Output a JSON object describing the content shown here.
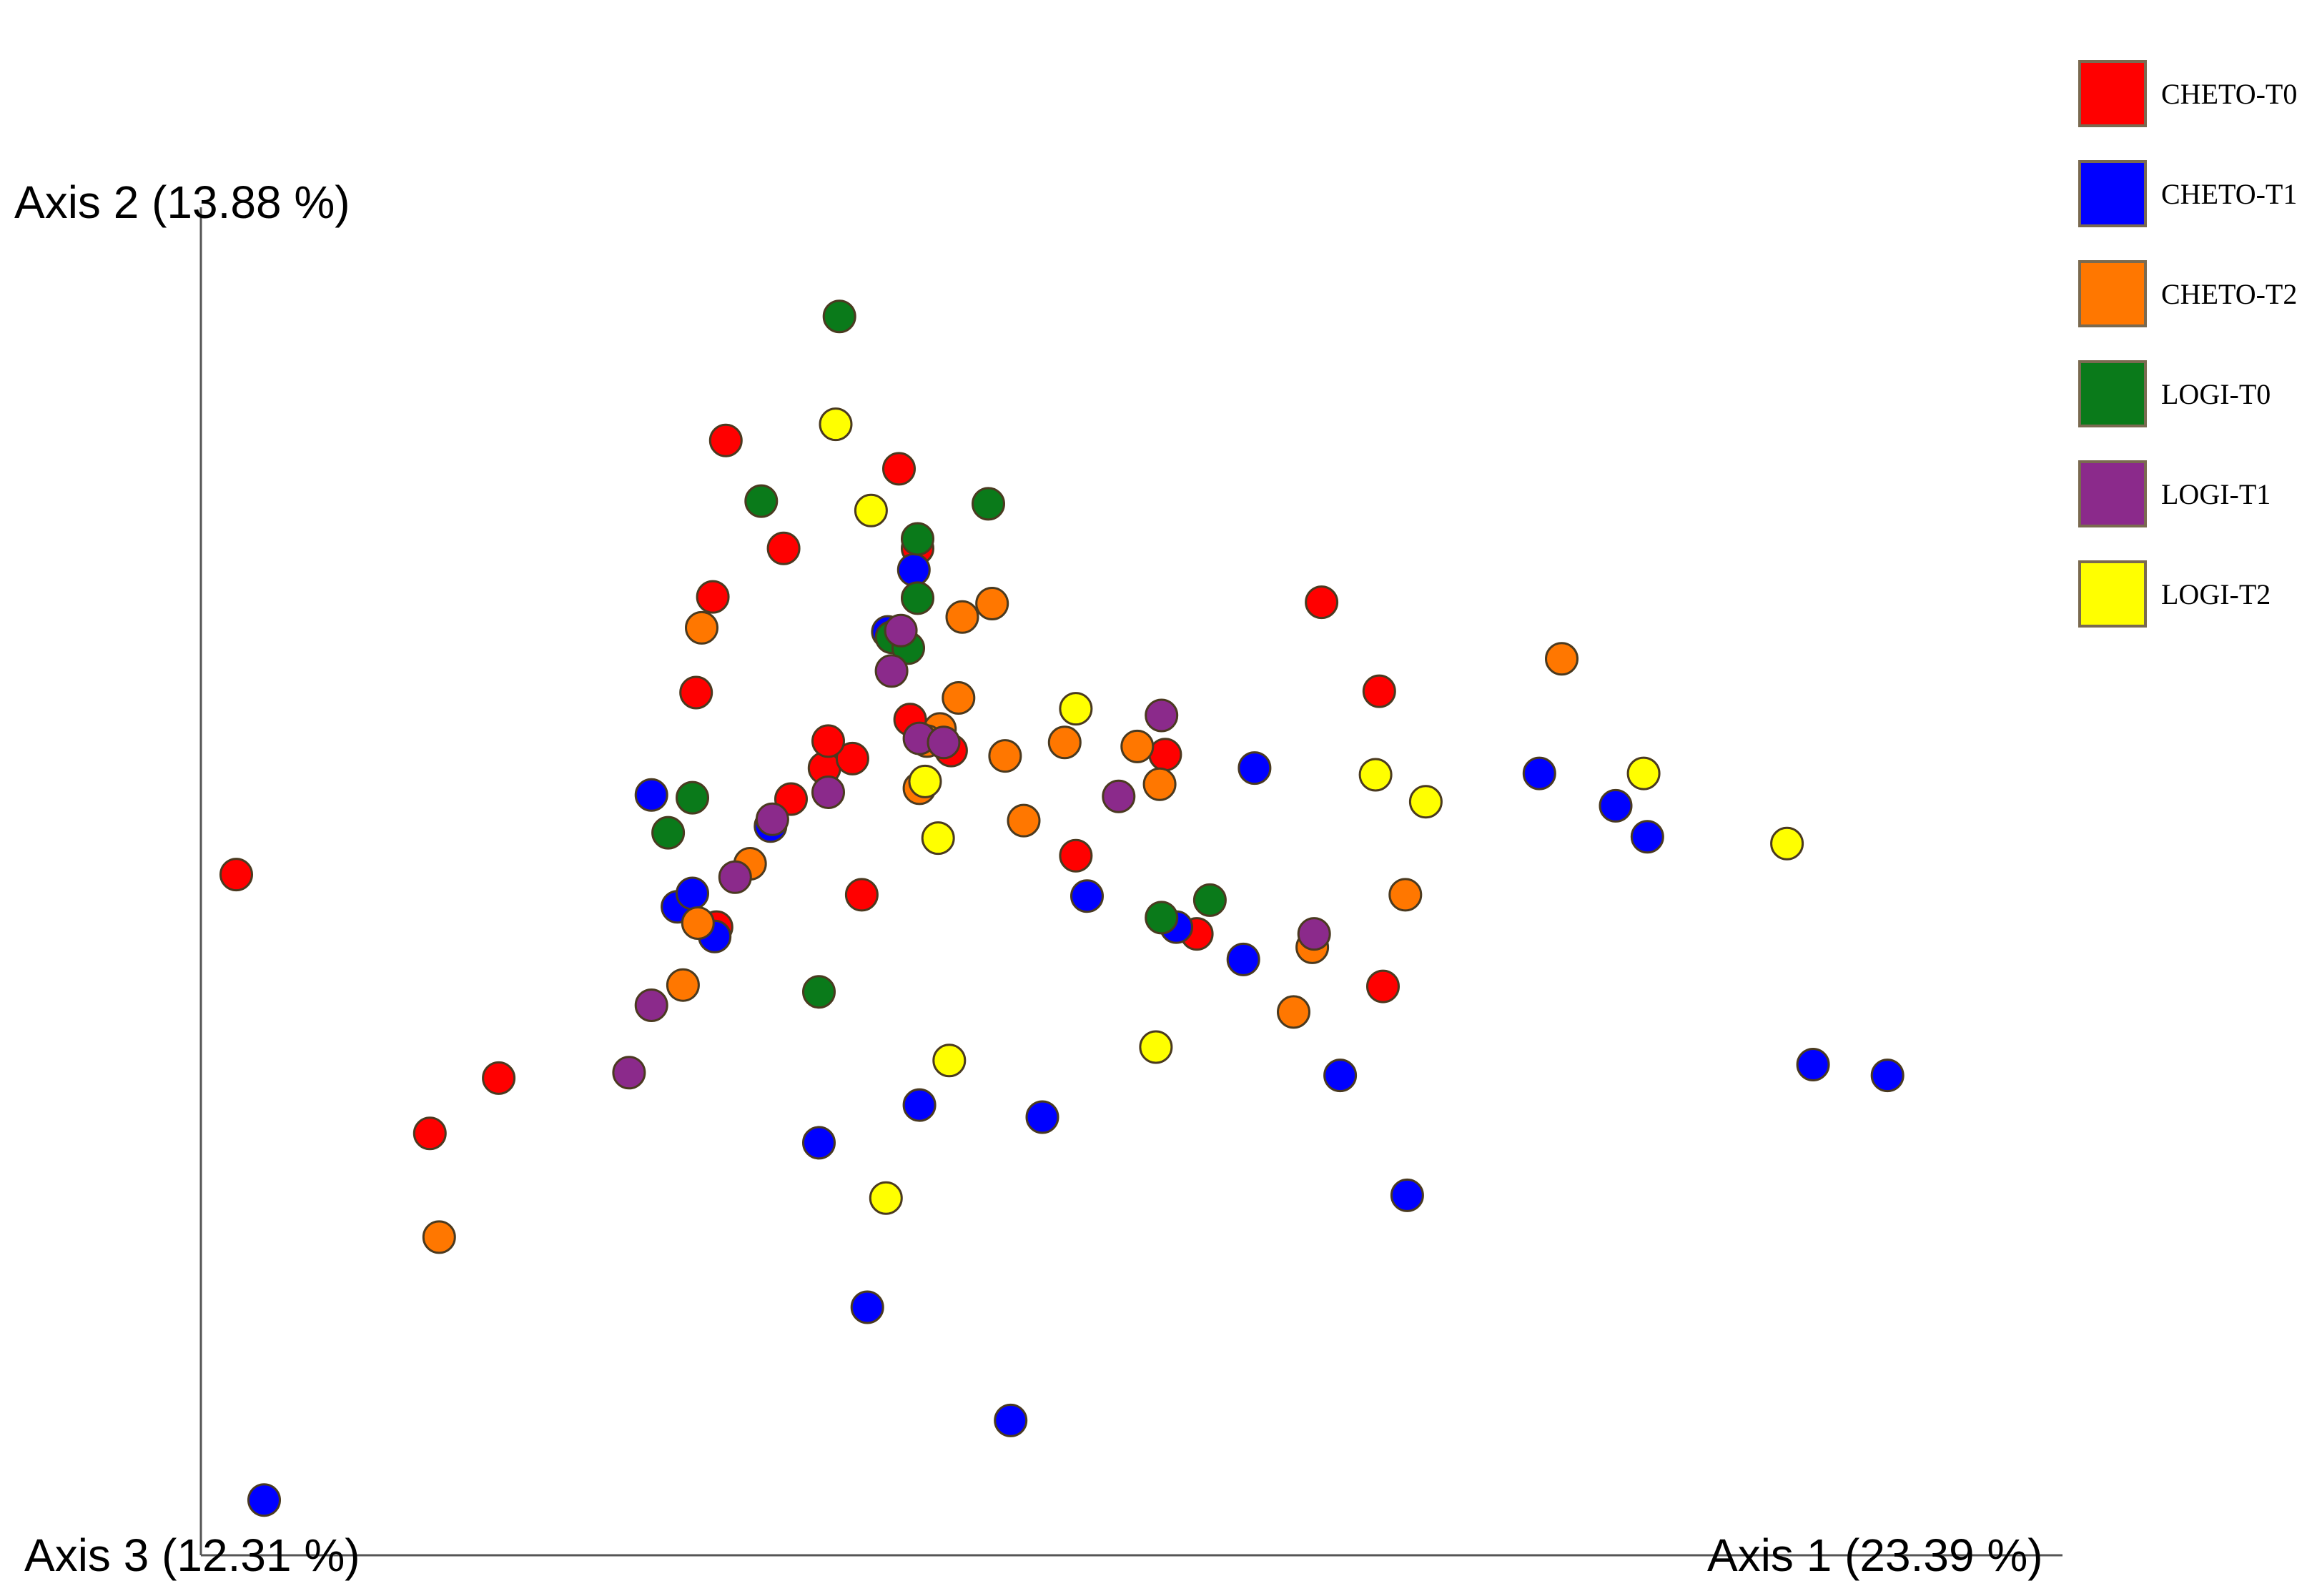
{
  "chart_data": {
    "type": "scatter",
    "projection": "3D PCoA",
    "axes": {
      "axis1_label": "Axis 1 (23.39 %)",
      "axis2_label": "Axis 2 (13.88 %)",
      "axis3_label": "Axis 3 (12.31 %)",
      "axis1_range": [
        0,
        100
      ],
      "axis2_range": [
        0,
        100
      ]
    },
    "grid": false,
    "legend_position": "top-right",
    "series": [
      {
        "name": "CHETO-T0",
        "color": "#ff0000",
        "points": [
          [
            1.9,
            50.5
          ],
          [
            12.3,
            31.3
          ],
          [
            16.0,
            35.4
          ],
          [
            26.6,
            64.0
          ],
          [
            27.7,
            46.6
          ],
          [
            27.5,
            71.1
          ],
          [
            31.7,
            56.1
          ],
          [
            33.5,
            58.4
          ],
          [
            35.0,
            59.1
          ],
          [
            38.1,
            62.0
          ],
          [
            38.5,
            74.7
          ],
          [
            28.2,
            82.7
          ],
          [
            37.5,
            80.6
          ],
          [
            35.5,
            49.0
          ],
          [
            31.3,
            74.7
          ],
          [
            33.7,
            60.4
          ],
          [
            47.0,
            51.9
          ],
          [
            53.5,
            46.1
          ],
          [
            60.2,
            70.7
          ],
          [
            51.8,
            59.4
          ],
          [
            63.3,
            64.1
          ],
          [
            63.5,
            42.2
          ],
          [
            40.3,
            59.7
          ]
        ]
      },
      {
        "name": "CHETO-T1",
        "color": "#0000ff",
        "points": [
          [
            3.4,
            4.1
          ],
          [
            25.6,
            48.1
          ],
          [
            26.4,
            49.1
          ],
          [
            27.6,
            45.9
          ],
          [
            24.2,
            56.4
          ],
          [
            30.6,
            54.1
          ],
          [
            33.2,
            30.6
          ],
          [
            35.8,
            18.4
          ],
          [
            38.6,
            33.4
          ],
          [
            38.3,
            73.1
          ],
          [
            36.9,
            68.5
          ],
          [
            43.5,
            10.0
          ],
          [
            45.2,
            32.5
          ],
          [
            61.2,
            35.6
          ],
          [
            52.4,
            46.6
          ],
          [
            56.6,
            58.4
          ],
          [
            64.8,
            26.7
          ],
          [
            71.9,
            58.0
          ],
          [
            76.0,
            55.6
          ],
          [
            77.7,
            53.3
          ],
          [
            86.6,
            36.4
          ],
          [
            90.6,
            35.6
          ],
          [
            47.6,
            48.9
          ],
          [
            56.0,
            44.2
          ]
        ]
      },
      {
        "name": "CHETO-T2",
        "color": "#ff7700",
        "points": [
          [
            12.8,
            23.6
          ],
          [
            25.9,
            42.3
          ],
          [
            29.5,
            51.3
          ],
          [
            26.7,
            46.9
          ],
          [
            26.9,
            68.8
          ],
          [
            40.7,
            63.6
          ],
          [
            38.6,
            56.9
          ],
          [
            39.7,
            61.3
          ],
          [
            43.2,
            59.3
          ],
          [
            44.2,
            54.5
          ],
          [
            46.4,
            60.3
          ],
          [
            59.7,
            45.1
          ],
          [
            64.7,
            49.0
          ],
          [
            58.7,
            40.3
          ],
          [
            73.1,
            66.5
          ],
          [
            51.5,
            57.2
          ],
          [
            42.5,
            70.6
          ],
          [
            40.9,
            69.6
          ],
          [
            39.0,
            60.4
          ],
          [
            50.3,
            60.0
          ]
        ]
      },
      {
        "name": "LOGI-T0",
        "color": "#0a7a1a",
        "points": [
          [
            34.3,
            91.9
          ],
          [
            30.1,
            78.2
          ],
          [
            42.3,
            78.0
          ],
          [
            38.5,
            75.4
          ],
          [
            37.1,
            68.1
          ],
          [
            26.4,
            56.2
          ],
          [
            25.1,
            53.6
          ],
          [
            51.6,
            47.3
          ],
          [
            54.2,
            48.6
          ],
          [
            33.2,
            41.8
          ],
          [
            38.0,
            67.3
          ],
          [
            38.5,
            71.0
          ]
        ]
      },
      {
        "name": "LOGI-T1",
        "color": "#8b2a8b",
        "points": [
          [
            23.0,
            35.8
          ],
          [
            24.2,
            40.8
          ],
          [
            28.7,
            50.3
          ],
          [
            30.7,
            54.6
          ],
          [
            33.7,
            56.6
          ],
          [
            37.6,
            68.6
          ],
          [
            37.1,
            65.6
          ],
          [
            38.6,
            60.6
          ],
          [
            39.9,
            60.3
          ],
          [
            51.6,
            62.3
          ],
          [
            49.3,
            56.3
          ],
          [
            59.8,
            46.1
          ]
        ]
      },
      {
        "name": "LOGI-T2",
        "color": "#ffff00",
        "points": [
          [
            34.1,
            83.9
          ],
          [
            36.0,
            77.5
          ],
          [
            38.9,
            57.4
          ],
          [
            39.6,
            53.2
          ],
          [
            40.2,
            36.7
          ],
          [
            36.8,
            26.5
          ],
          [
            47.0,
            62.8
          ],
          [
            51.3,
            37.7
          ],
          [
            63.1,
            57.9
          ],
          [
            65.8,
            55.9
          ],
          [
            77.5,
            58.0
          ],
          [
            85.2,
            52.8
          ]
        ]
      }
    ]
  }
}
